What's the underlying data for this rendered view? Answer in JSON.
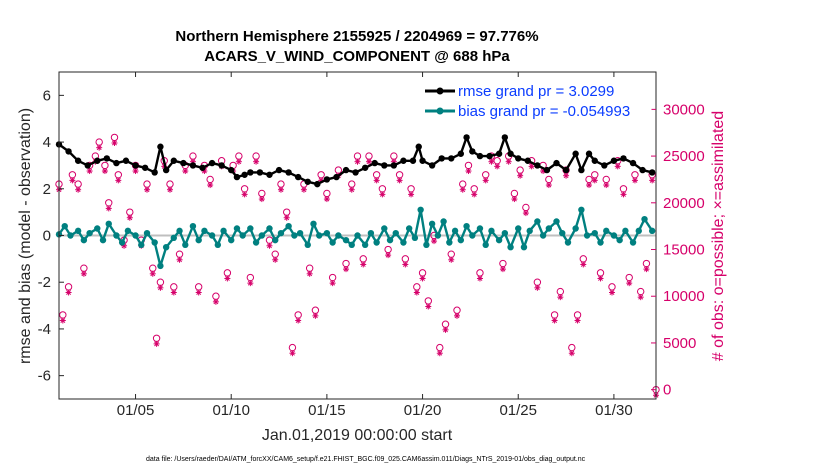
{
  "chart_data": {
    "type": "line",
    "title": "Northern Hemisphere 2155925 / 2204969 = 97.776%",
    "subtitle": "ACARS_V_WIND_COMPONENT @ 688 hPa",
    "xlabel": "Jan.01,2019 00:00:00 start",
    "ylabel": "rmse and bias (model - observation)",
    "y2label": "# of obs: o=possible; ×=assimilated",
    "footnote": "data file: /Users/raeder/DAI/ATM_forcXX/CAM6_setup/f.e21.FHIST_BGC.f09_025.CAM6assim.011/Diags_NTrS_2019-01/obs_diag_output.nc",
    "xlim": [
      1,
      32.2
    ],
    "ylim": [
      -7,
      7
    ],
    "y2lim": [
      -1000,
      34000
    ],
    "xticks": [
      5,
      10,
      15,
      20,
      25,
      30
    ],
    "xtick_labels": [
      "01/05",
      "01/10",
      "01/15",
      "01/20",
      "01/25",
      "01/30"
    ],
    "yticks": [
      -6,
      -4,
      -2,
      0,
      2,
      4,
      6
    ],
    "ytick_labels": [
      "-6",
      "-4",
      "-2",
      "0",
      "2",
      "4",
      "6"
    ],
    "y2ticks": [
      0,
      5000,
      10000,
      15000,
      20000,
      25000,
      30000
    ],
    "y2tick_labels": [
      "0",
      "5000",
      "10000",
      "15000",
      "20000",
      "25000",
      "30000"
    ],
    "zero_line": 0,
    "legend_position": "top-right",
    "colors": {
      "rmse": "#000000",
      "bias": "#008080",
      "obs": "#d6006a",
      "zero": "#bfbfbf",
      "legend_text": "#0a3cff"
    },
    "series": [
      {
        "name": "rmse grand pr = 3.0299",
        "axis": "left",
        "anchors": [
          [
            1.0,
            3.9
          ],
          [
            1.5,
            3.6
          ],
          [
            2.0,
            3.2
          ],
          [
            2.5,
            3.0
          ],
          [
            3.0,
            3.2
          ],
          [
            3.5,
            3.3
          ],
          [
            4.0,
            3.1
          ],
          [
            4.5,
            3.2
          ],
          [
            5.0,
            3.0
          ],
          [
            5.5,
            2.9
          ],
          [
            6.0,
            2.7
          ],
          [
            6.3,
            3.8
          ],
          [
            6.6,
            2.8
          ],
          [
            7.0,
            3.2
          ],
          [
            7.5,
            3.1
          ],
          [
            8.0,
            3.0
          ],
          [
            8.5,
            2.9
          ],
          [
            9.0,
            3.1
          ],
          [
            9.5,
            3.0
          ],
          [
            10.0,
            2.8
          ],
          [
            10.3,
            2.5
          ],
          [
            10.7,
            2.6
          ],
          [
            11.0,
            2.7
          ],
          [
            11.5,
            2.7
          ],
          [
            12.0,
            2.6
          ],
          [
            12.5,
            2.8
          ],
          [
            13.0,
            2.7
          ],
          [
            13.5,
            2.5
          ],
          [
            14.0,
            2.3
          ],
          [
            14.5,
            2.2
          ],
          [
            15.0,
            2.4
          ],
          [
            15.5,
            2.5
          ],
          [
            16.0,
            2.8
          ],
          [
            16.5,
            2.7
          ],
          [
            17.0,
            2.9
          ],
          [
            17.5,
            3.1
          ],
          [
            18.0,
            3.0
          ],
          [
            18.5,
            3.0
          ],
          [
            19.0,
            3.2
          ],
          [
            19.5,
            3.2
          ],
          [
            19.8,
            3.8
          ],
          [
            20.0,
            3.2
          ],
          [
            20.5,
            3.0
          ],
          [
            21.0,
            3.3
          ],
          [
            21.5,
            3.3
          ],
          [
            22.0,
            3.5
          ],
          [
            22.3,
            4.2
          ],
          [
            22.6,
            3.6
          ],
          [
            23.0,
            3.4
          ],
          [
            23.5,
            3.4
          ],
          [
            24.0,
            3.5
          ],
          [
            24.3,
            4.2
          ],
          [
            24.6,
            3.5
          ],
          [
            25.0,
            3.3
          ],
          [
            25.5,
            3.2
          ],
          [
            26.0,
            3.0
          ],
          [
            26.5,
            2.8
          ],
          [
            27.0,
            3.1
          ],
          [
            27.5,
            2.8
          ],
          [
            28.0,
            3.5
          ],
          [
            28.3,
            2.8
          ],
          [
            28.7,
            3.5
          ],
          [
            29.0,
            3.2
          ],
          [
            29.5,
            3.0
          ],
          [
            30.0,
            3.2
          ],
          [
            30.5,
            3.3
          ],
          [
            31.0,
            3.1
          ],
          [
            31.5,
            2.8
          ],
          [
            32.0,
            2.7
          ]
        ]
      },
      {
        "name": "bias grand pr = -0.054993",
        "axis": "left",
        "anchors": [
          [
            1.0,
            0.05
          ],
          [
            1.3,
            0.4
          ],
          [
            1.6,
            0.0
          ],
          [
            2.0,
            0.2
          ],
          [
            2.3,
            -0.2
          ],
          [
            2.6,
            0.1
          ],
          [
            3.0,
            0.3
          ],
          [
            3.3,
            -0.2
          ],
          [
            3.6,
            0.5
          ],
          [
            4.0,
            0.0
          ],
          [
            4.3,
            -0.3
          ],
          [
            4.6,
            0.2
          ],
          [
            5.0,
            0.0
          ],
          [
            5.3,
            -0.4
          ],
          [
            5.6,
            0.1
          ],
          [
            6.0,
            -0.3
          ],
          [
            6.3,
            -1.3
          ],
          [
            6.6,
            -0.5
          ],
          [
            7.0,
            -0.1
          ],
          [
            7.3,
            0.2
          ],
          [
            7.6,
            -0.4
          ],
          [
            8.0,
            0.4
          ],
          [
            8.3,
            -0.2
          ],
          [
            8.6,
            0.2
          ],
          [
            9.0,
            0.0
          ],
          [
            9.3,
            -0.4
          ],
          [
            9.6,
            0.2
          ],
          [
            10.0,
            -0.2
          ],
          [
            10.3,
            0.3
          ],
          [
            10.6,
            0.0
          ],
          [
            11.0,
            0.3
          ],
          [
            11.3,
            -0.3
          ],
          [
            11.6,
            0.0
          ],
          [
            12.0,
            0.3
          ],
          [
            12.3,
            -0.2
          ],
          [
            12.6,
            0.1
          ],
          [
            13.0,
            0.4
          ],
          [
            13.3,
            0.0
          ],
          [
            13.6,
            0.1
          ],
          [
            14.0,
            -0.4
          ],
          [
            14.3,
            0.5
          ],
          [
            14.6,
            0.0
          ],
          [
            15.0,
            0.1
          ],
          [
            15.3,
            -0.3
          ],
          [
            15.6,
            0.0
          ],
          [
            16.0,
            -0.2
          ],
          [
            16.3,
            -0.4
          ],
          [
            16.6,
            0.0
          ],
          [
            17.0,
            -0.4
          ],
          [
            17.3,
            0.1
          ],
          [
            17.6,
            -0.3
          ],
          [
            18.0,
            0.3
          ],
          [
            18.3,
            -0.2
          ],
          [
            18.6,
            0.1
          ],
          [
            19.0,
            -0.3
          ],
          [
            19.3,
            0.3
          ],
          [
            19.6,
            -0.1
          ],
          [
            19.9,
            1.1
          ],
          [
            20.2,
            -0.4
          ],
          [
            20.5,
            0.5
          ],
          [
            20.8,
            0.0
          ],
          [
            21.1,
            0.6
          ],
          [
            21.4,
            -0.3
          ],
          [
            21.7,
            0.2
          ],
          [
            22.0,
            -0.2
          ],
          [
            22.3,
            0.4
          ],
          [
            22.6,
            0.0
          ],
          [
            23.0,
            0.3
          ],
          [
            23.3,
            -0.4
          ],
          [
            23.6,
            0.2
          ],
          [
            24.0,
            -0.2
          ],
          [
            24.3,
            0.1
          ],
          [
            24.6,
            -0.5
          ],
          [
            25.0,
            0.3
          ],
          [
            25.3,
            -0.5
          ],
          [
            25.6,
            0.2
          ],
          [
            26.0,
            0.6
          ],
          [
            26.3,
            0.0
          ],
          [
            26.6,
            0.3
          ],
          [
            27.0,
            0.6
          ],
          [
            27.3,
            0.1
          ],
          [
            27.6,
            -0.3
          ],
          [
            28.0,
            0.3
          ],
          [
            28.3,
            1.1
          ],
          [
            28.6,
            0.0
          ],
          [
            29.0,
            0.1
          ],
          [
            29.3,
            -0.3
          ],
          [
            29.6,
            0.2
          ],
          [
            30.0,
            0.0
          ],
          [
            30.3,
            -0.2
          ],
          [
            30.6,
            0.2
          ],
          [
            31.0,
            -0.3
          ],
          [
            31.3,
            0.2
          ],
          [
            31.6,
            0.7
          ],
          [
            32.0,
            0.2
          ]
        ]
      },
      {
        "name": "possible obs",
        "axis": "right",
        "anchors": [
          [
            1.0,
            22000
          ],
          [
            1.2,
            8000
          ],
          [
            1.5,
            11000
          ],
          [
            1.7,
            23000
          ],
          [
            2.0,
            22000
          ],
          [
            2.3,
            13000
          ],
          [
            2.6,
            24000
          ],
          [
            2.9,
            25000
          ],
          [
            3.1,
            26500
          ],
          [
            3.4,
            24000
          ],
          [
            3.6,
            20000
          ],
          [
            3.9,
            27000
          ],
          [
            4.1,
            23000
          ],
          [
            4.4,
            16000
          ],
          [
            4.7,
            19000
          ],
          [
            5.0,
            24000
          ],
          [
            5.3,
            16000
          ],
          [
            5.6,
            22000
          ],
          [
            5.9,
            13000
          ],
          [
            6.1,
            5500
          ],
          [
            6.3,
            11500
          ],
          [
            6.5,
            24500
          ],
          [
            6.8,
            22000
          ],
          [
            7.0,
            11000
          ],
          [
            7.3,
            14500
          ],
          [
            7.6,
            24000
          ],
          [
            8.0,
            25000
          ],
          [
            8.3,
            11000
          ],
          [
            8.6,
            24000
          ],
          [
            8.9,
            22500
          ],
          [
            9.2,
            10000
          ],
          [
            9.5,
            24500
          ],
          [
            9.8,
            12500
          ],
          [
            10.1,
            24000
          ],
          [
            10.4,
            25000
          ],
          [
            10.7,
            21500
          ],
          [
            11.0,
            12000
          ],
          [
            11.3,
            25000
          ],
          [
            11.6,
            21000
          ],
          [
            12.0,
            16000
          ],
          [
            12.3,
            14500
          ],
          [
            12.6,
            22000
          ],
          [
            12.9,
            19000
          ],
          [
            13.2,
            4500
          ],
          [
            13.5,
            8000
          ],
          [
            13.8,
            22000
          ],
          [
            14.1,
            13000
          ],
          [
            14.4,
            8500
          ],
          [
            14.7,
            23000
          ],
          [
            15.0,
            21000
          ],
          [
            15.3,
            12000
          ],
          [
            15.6,
            23500
          ],
          [
            16.0,
            13500
          ],
          [
            16.3,
            22000
          ],
          [
            16.6,
            25000
          ],
          [
            16.9,
            14000
          ],
          [
            17.2,
            25000
          ],
          [
            17.6,
            23000
          ],
          [
            17.9,
            21500
          ],
          [
            18.2,
            15000
          ],
          [
            18.5,
            25000
          ],
          [
            18.8,
            23000
          ],
          [
            19.1,
            14000
          ],
          [
            19.4,
            21500
          ],
          [
            19.7,
            11000
          ],
          [
            20.0,
            12500
          ],
          [
            20.3,
            9500
          ],
          [
            20.6,
            16500
          ],
          [
            20.9,
            4500
          ],
          [
            21.2,
            7000
          ],
          [
            21.5,
            14500
          ],
          [
            21.8,
            8500
          ],
          [
            22.1,
            22000
          ],
          [
            22.4,
            24000
          ],
          [
            22.7,
            21500
          ],
          [
            23.0,
            12500
          ],
          [
            23.3,
            23000
          ],
          [
            23.6,
            25000
          ],
          [
            23.9,
            24500
          ],
          [
            24.2,
            13500
          ],
          [
            24.5,
            25000
          ],
          [
            24.8,
            21000
          ],
          [
            25.1,
            23500
          ],
          [
            25.4,
            19500
          ],
          [
            25.7,
            24500
          ],
          [
            26.0,
            11500
          ],
          [
            26.3,
            24000
          ],
          [
            26.6,
            22500
          ],
          [
            26.9,
            8000
          ],
          [
            27.2,
            10500
          ],
          [
            27.5,
            23500
          ],
          [
            27.8,
            4500
          ],
          [
            28.1,
            8000
          ],
          [
            28.4,
            14000
          ],
          [
            28.7,
            22500
          ],
          [
            29.0,
            23000
          ],
          [
            29.3,
            12500
          ],
          [
            29.6,
            22500
          ],
          [
            29.9,
            11000
          ],
          [
            30.2,
            24500
          ],
          [
            30.5,
            21500
          ],
          [
            30.8,
            12000
          ],
          [
            31.1,
            23000
          ],
          [
            31.4,
            10500
          ],
          [
            31.7,
            13500
          ],
          [
            32.0,
            23000
          ],
          [
            32.2,
            0
          ]
        ]
      },
      {
        "name": "assimilated obs",
        "axis": "right",
        "anchors_offset_from_possible": -600
      }
    ]
  }
}
